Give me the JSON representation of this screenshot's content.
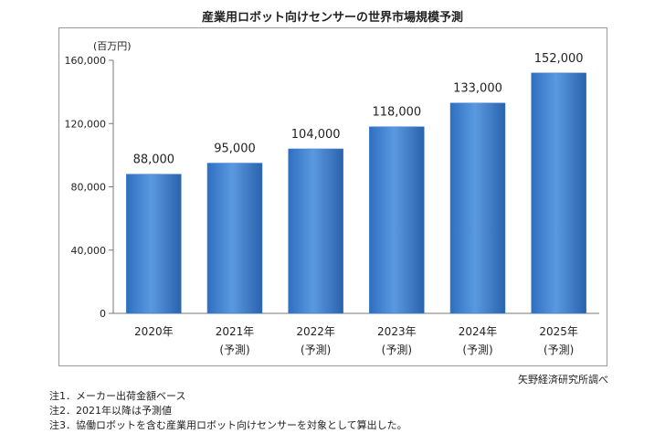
{
  "title": "産業用ロボット向けセンサーの世界市場規模予測",
  "unit": "(百万円)",
  "source": "矢野経済研究所調べ",
  "notes": [
    "注1．メーカー出荷金額ベース",
    "注2．2021年以降は予測値",
    "注3．協働ロボットを含む産業用ロボット向けセンサーを対象として算出した。"
  ],
  "bar_color": "#3d7fd0",
  "chart_data": {
    "type": "bar",
    "categories": [
      "2020年",
      "2021年",
      "2022年",
      "2023年",
      "2024年",
      "2025年"
    ],
    "category_sublabels": [
      "",
      "(予測)",
      "(予測)",
      "(予測)",
      "(予測)",
      "(予測)"
    ],
    "values": [
      88000,
      95000,
      104000,
      118000,
      133000,
      152000
    ],
    "data_labels": [
      "88,000",
      "95,000",
      "104,000",
      "118,000",
      "133,000",
      "152,000"
    ],
    "yticks": [
      0,
      40000,
      80000,
      120000,
      160000
    ],
    "ytick_labels": [
      "0",
      "40,000",
      "80,000",
      "120,000",
      "160,000"
    ],
    "ylim": [
      0,
      160000
    ],
    "ylabel": "(百万円)",
    "title": "産業用ロボット向けセンサーの世界市場規模予測",
    "grid": false,
    "legend": false
  }
}
